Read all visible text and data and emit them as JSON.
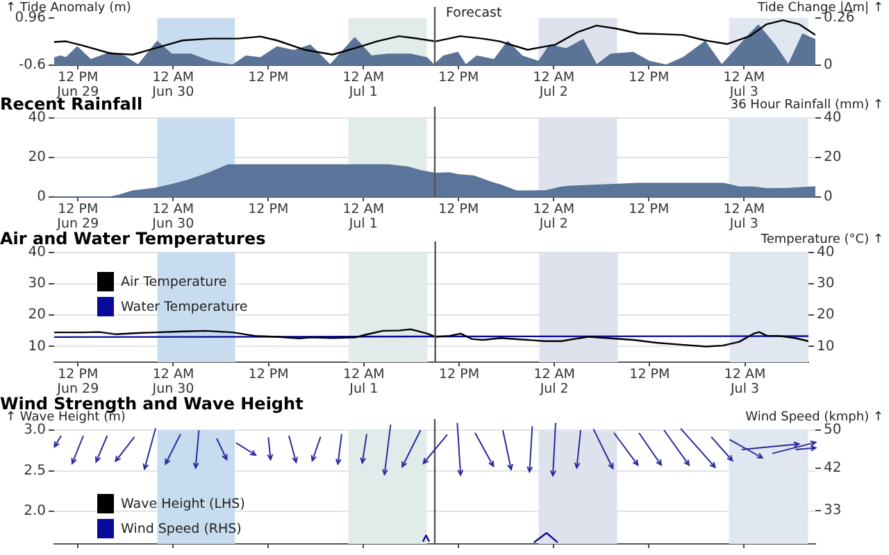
{
  "chart_data": [
    {
      "type": "line",
      "ylabel": "↑ Tide Anomaly (m)",
      "y2label": "Tide Change |Δm| ↑",
      "xlim": [
        "--06-29T09:00",
        "--07-03T09:00"
      ],
      "xticks": [
        {
          "value": "--06-29T12:00",
          "label": "12 PM\nJun 29"
        },
        {
          "value": "--06-30T00:00",
          "label": "12 AM\nJun 30"
        },
        {
          "value": "--06-30T12:00",
          "label": "12 PM"
        },
        {
          "value": "--07-01T00:00",
          "label": "12 AM\nJul 1"
        },
        {
          "value": "--07-01T12:00",
          "label": "12 PM"
        },
        {
          "value": "--07-02T00:00",
          "label": "12 AM\nJul 2"
        },
        {
          "value": "--07-02T12:00",
          "label": "12 PM"
        },
        {
          "value": "--07-03T00:00",
          "label": "12 AM\nJul 3"
        }
      ],
      "ylim": [
        -0.6,
        0.96
      ],
      "yticks": [
        -0.6,
        0.96
      ],
      "y2lim": [
        0,
        0.26
      ],
      "y2ticks": [
        0,
        0.26
      ],
      "grid": false,
      "bands": [
        {
          "axis": "x",
          "from": "--06-29T22:00",
          "to": "--06-30T07:48",
          "color": "#c8dcef"
        },
        {
          "axis": "x",
          "from": "--06-30T22:06",
          "to": "--07-01T08:00",
          "color": "#e0ebea"
        },
        {
          "axis": "x",
          "from": "--07-01T22:06",
          "to": "--07-02T08:00",
          "color": "#dde2ec"
        },
        {
          "axis": "x",
          "from": "--07-02T22:06",
          "to": "--07-03T08:06",
          "color": "#e0e7f0"
        }
      ],
      "ref_lines": [
        {
          "axis": "x",
          "value": "--07-01T09:00",
          "label": "Forecast",
          "color": "#555555"
        }
      ],
      "series": [
        {
          "type": "area",
          "axis": "y2",
          "color": "#5a7396",
          "x": [
            "--06-29T09:00",
            "--06-29T09:48",
            "--06-29T10:30",
            "--06-29T11:54",
            "--06-29T13:36",
            "--06-29T16:06",
            "--06-29T17:48",
            "--06-29T19:36",
            "--06-29T22:00",
            "--06-29T23:48",
            "--06-30T02:12",
            "--06-30T04:42",
            "--06-30T07:30",
            "--06-30T09:12",
            "--06-30T11:00",
            "--06-30T13:06",
            "--06-30T15:12",
            "--06-30T17:18",
            "--06-30T19:48",
            "--06-30T22:54",
            "--07-01T01:00",
            "--07-01T03:06",
            "--07-01T05:54",
            "--07-01T08:00",
            "--07-01T08:54",
            "--07-01T10:06",
            "--07-01T11:54",
            "--07-01T12:54",
            "--07-01T14:18",
            "--07-01T16:30",
            "--07-01T18:12",
            "--07-01T20:00",
            "--07-01T22:06",
            "--07-01T23:30",
            "--07-02T01:36",
            "--07-02T03:42",
            "--07-02T05:24",
            "--07-02T07:12",
            "--07-02T10:00",
            "--07-02T12:06",
            "--07-02T14:12",
            "--07-02T16:18",
            "--07-02T19:06",
            "--07-02T21:12",
            "--07-03T00:42",
            "--07-03T01:48",
            "--07-03T03:54",
            "--07-03T05:36",
            "--07-03T07:24",
            "--07-03T09:00"
          ],
          "values": [
            0.04,
            0.05,
            0.04,
            0.1,
            0.03,
            0.07,
            0.05,
            0,
            0.13,
            0.06,
            0.06,
            0.02,
            0,
            0.05,
            0.04,
            0.1,
            0.08,
            0.11,
            0,
            0.15,
            0.05,
            0.06,
            0.06,
            0.04,
            0,
            0.05,
            0.07,
            0,
            0.05,
            0.03,
            0.13,
            0.05,
            0.02,
            0.11,
            0.09,
            0.14,
            0,
            0.06,
            0.07,
            0.02,
            0,
            0.04,
            0.13,
            0,
            0.17,
            0.22,
            0.11,
            0,
            0.17,
            0.14
          ]
        },
        {
          "type": "line",
          "color": "#000000",
          "x": [
            "--06-29T09:00",
            "--06-29T10:30",
            "--06-29T12:36",
            "--06-29T16:06",
            "--06-29T18:54",
            "--06-29T21:42",
            "--06-30T01:12",
            "--06-30T04:42",
            "--06-30T08:12",
            "--06-30T11:00",
            "--06-30T13:06",
            "--06-30T16:36",
            "--06-30T20:06",
            "--06-30T22:54",
            "--07-01T01:42",
            "--07-01T04:30",
            "--07-01T06:36",
            "--07-01T09:06",
            "--07-01T12:12",
            "--07-01T15:00",
            "--07-01T17:12",
            "--07-01T20:42",
            "--07-02T00:12",
            "--07-02T03:00",
            "--07-02T05:24",
            "--07-02T07:54",
            "--07-02T10:42",
            "--07-02T13:30",
            "--07-02T16:18",
            "--07-02T19:06",
            "--07-02T21:54",
            "--07-03T00:42",
            "--07-03T02:48",
            "--07-03T04:54",
            "--07-03T07:00",
            "--07-03T09:00"
          ],
          "values": [
            0.17,
            0.19,
            0.05,
            -0.21,
            -0.25,
            -0.04,
            0.22,
            0.28,
            0.28,
            0.35,
            0.22,
            -0.09,
            -0.25,
            -0.04,
            0.19,
            0.36,
            0.29,
            0.19,
            0.36,
            0.28,
            0.19,
            -0.09,
            0.08,
            0.49,
            0.71,
            0.61,
            0.45,
            0.43,
            0.4,
            0.22,
            0.1,
            0.36,
            0.75,
            0.89,
            0.75,
            0.4
          ]
        }
      ]
    },
    {
      "type": "area",
      "title": "Recent Rainfall",
      "y2label": "36 Hour Rainfall (mm) ↑",
      "xlim": [
        "--06-29T09:00",
        "--07-03T09:00"
      ],
      "xticks": [
        {
          "value": "--06-29T12:00",
          "label": "12 PM\nJun 29"
        },
        {
          "value": "--06-30T00:00",
          "label": "12 AM\nJun 30"
        },
        {
          "value": "--06-30T12:00",
          "label": "12 PM"
        },
        {
          "value": "--07-01T00:00",
          "label": "12 AM\nJul 1"
        },
        {
          "value": "--07-01T12:00",
          "label": "12 PM"
        },
        {
          "value": "--07-02T00:00",
          "label": "12 AM\nJul 2"
        },
        {
          "value": "--07-02T12:00",
          "label": "12 PM"
        },
        {
          "value": "--07-03T00:00",
          "label": "12 AM\nJul 3"
        }
      ],
      "ylim": [
        0,
        40
      ],
      "yticks": [
        0,
        20,
        40
      ],
      "y2lim": [
        0,
        40
      ],
      "y2ticks": [
        0,
        20,
        40
      ],
      "grid": "y",
      "bands": [
        {
          "axis": "x",
          "from": "--06-29T22:00",
          "to": "--06-30T07:48",
          "color": "#c8dcef"
        },
        {
          "axis": "x",
          "from": "--06-30T22:06",
          "to": "--07-01T08:00",
          "color": "#e0ebea"
        },
        {
          "axis": "x",
          "from": "--07-01T22:06",
          "to": "--07-02T08:00",
          "color": "#dde2ec"
        },
        {
          "axis": "x",
          "from": "--07-02T22:06",
          "to": "--07-03T08:06",
          "color": "#e0e7f0"
        }
      ],
      "ref_lines": [
        {
          "axis": "x",
          "value": "--07-01T09:00",
          "color": "#555555"
        }
      ],
      "series": [
        {
          "axis": "y2",
          "color": "#5b7499",
          "x": [
            "--06-29T09:00",
            "--06-29T16:06",
            "--06-29T17:06",
            "--06-29T18:54",
            "--06-29T21:42",
            "--06-29T23:48",
            "--06-30T01:54",
            "--06-30T04:42",
            "--06-30T06:54",
            "--06-30T13:06",
            "--06-30T20:06",
            "--07-01T03:06",
            "--07-01T05:36",
            "--07-01T07:18",
            "--07-01T09:06",
            "--07-01T10:48",
            "--07-01T12:12",
            "--07-01T14:00",
            "--07-01T15:48",
            "--07-01T17:30",
            "--07-01T19:18",
            "--07-01T20:42",
            "--07-01T23:06",
            "--07-02T00:54",
            "--07-02T02:18",
            "--07-02T07:12",
            "--07-02T10:42",
            "--07-02T14:12",
            "--07-02T17:42",
            "--07-02T21:30",
            "--07-02T23:18",
            "--07-03T01:24",
            "--07-03T02:48",
            "--07-03T05:36",
            "--07-03T09:00"
          ],
          "values": [
            0,
            0,
            0.8,
            3,
            4.3,
            6.2,
            8.4,
            12.4,
            16.2,
            16.2,
            16.2,
            16.2,
            15.1,
            13.2,
            11.9,
            12.2,
            11.1,
            10.5,
            7.8,
            5.7,
            3,
            3,
            3.2,
            4.9,
            5.4,
            6.2,
            6.8,
            6.8,
            6.8,
            6.8,
            5.1,
            4.9,
            4.1,
            4.3,
            5.1
          ]
        }
      ]
    },
    {
      "type": "line",
      "title": "Air and Water Temperatures",
      "y2label": "Temperature (°C) ↑",
      "xlim": [
        "--06-29T09:00",
        "--07-03T08:00"
      ],
      "xticks": [
        {
          "value": "--06-29T12:00",
          "label": "12 PM\nJun 29"
        },
        {
          "value": "--06-30T00:00",
          "label": "12 AM\nJun 30"
        },
        {
          "value": "--06-30T12:00",
          "label": "12 PM"
        },
        {
          "value": "--07-01T00:00",
          "label": "12 AM\nJul 1"
        },
        {
          "value": "--07-01T12:00",
          "label": "12 PM"
        },
        {
          "value": "--07-02T00:00",
          "label": "12 AM\nJul 2"
        },
        {
          "value": "--07-02T12:00",
          "label": "12 PM"
        },
        {
          "value": "--07-03T00:00",
          "label": "12 AM\nJul 3"
        }
      ],
      "ylim": [
        5,
        40
      ],
      "yticks": [
        10,
        20,
        30,
        40
      ],
      "y2lim": [
        5,
        40
      ],
      "y2ticks": [
        10,
        20,
        30,
        40
      ],
      "grid": "y",
      "legend": "top left",
      "bands": [
        {
          "axis": "x",
          "from": "--06-29T22:00",
          "to": "--06-30T07:48",
          "color": "#c8dcef"
        },
        {
          "axis": "x",
          "from": "--06-30T22:06",
          "to": "--07-01T08:00",
          "color": "#e0ebea"
        },
        {
          "axis": "x",
          "from": "--07-01T22:06",
          "to": "--07-02T08:00",
          "color": "#dde2ec"
        },
        {
          "axis": "x",
          "from": "--07-02T22:06",
          "to": "--07-03T08:00",
          "color": "#e0e7f0"
        }
      ],
      "ref_lines": [
        {
          "axis": "x",
          "value": "--07-01T09:00",
          "color": "#555555"
        }
      ],
      "series": [
        {
          "name": "Air Temperature",
          "color": "#000000",
          "x": [
            "--06-29T09:00",
            "--06-29T12:36",
            "--06-29T14:42",
            "--06-29T16:48",
            "--06-29T19:36",
            "--06-29T21:42",
            "--06-30T01:12",
            "--06-30T04:00",
            "--06-30T07:30",
            "--06-30T10:18",
            "--06-30T13:06",
            "--06-30T15:54",
            "--06-30T17:18",
            "--06-30T20:06",
            "--06-30T22:54",
            "--07-01T00:18",
            "--07-01T02:24",
            "--07-01T04:30",
            "--07-01T05:54",
            "--07-01T08:00",
            "--07-01T09:00",
            "--07-01T10:48",
            "--07-01T12:12",
            "--07-01T13:36",
            "--07-01T15:00",
            "--07-01T17:12",
            "--07-01T20:00",
            "--07-01T22:48",
            "--07-02T00:54",
            "--07-02T03:00",
            "--07-02T04:24",
            "--07-02T07:12",
            "--07-02T10:00",
            "--07-02T12:48",
            "--07-02T16:18",
            "--07-02T19:06",
            "--07-02T21:12",
            "--07-02T23:18",
            "--07-03T01:06",
            "--07-03T01:48",
            "--07-03T02:48",
            "--07-03T04:12",
            "--07-03T06:18",
            "--07-03T08:00"
          ],
          "values": [
            14.5,
            14.5,
            14.6,
            13.9,
            14.3,
            14.5,
            14.8,
            15,
            14.5,
            13.4,
            13.1,
            12.6,
            12.9,
            12.7,
            12.9,
            13.8,
            15,
            15.1,
            15.5,
            14.1,
            13.1,
            13.4,
            14.1,
            12.4,
            12.1,
            12.7,
            12.2,
            11.7,
            11.7,
            12.6,
            13.1,
            12.6,
            12.1,
            11.2,
            10.5,
            10,
            10.3,
            11.5,
            14.1,
            14.6,
            13.4,
            13.4,
            12.7,
            11.7
          ]
        },
        {
          "name": "Water Temperature",
          "color": "#0a0a9a",
          "x": [
            "--06-29T09:00",
            "--07-01T09:00",
            "--07-03T08:00"
          ],
          "values": [
            13,
            13.2,
            13.3
          ]
        }
      ]
    },
    {
      "type": "line",
      "title": "Wind Strength and Wave Height",
      "ylabel": "↑ Wave Height (m)",
      "y2label": "Wind Speed (kmph) ↑",
      "xlim": [
        "--06-29T09:00",
        "--07-03T09:00"
      ],
      "xticks": [
        {
          "value": "--06-29T12:00",
          "label": null
        },
        {
          "value": "--06-30T00:00",
          "label": null
        },
        {
          "value": "--06-30T12:00",
          "label": null
        },
        {
          "value": "--07-01T00:00",
          "label": null
        },
        {
          "value": "--07-01T12:00",
          "label": null
        },
        {
          "value": "--07-02T00:00",
          "label": null
        },
        {
          "value": "--07-02T12:00",
          "label": null
        },
        {
          "value": "--07-03T00:00",
          "label": null
        }
      ],
      "ylim": [
        1.6,
        3
      ],
      "yticks": [
        {
          "value": 2,
          "label": "2.0"
        },
        2.5,
        {
          "value": 3,
          "label": "3.0"
        }
      ],
      "y2lim": [
        26,
        50
      ],
      "y2ticks": [
        33,
        42,
        50
      ],
      "grid": "y",
      "legend": "bottom left",
      "tick_labels": "y",
      "bands": [
        {
          "axis": "x",
          "from": "--06-29T22:00",
          "to": "--06-30T07:48",
          "color": "#c8dcef"
        },
        {
          "axis": "x",
          "from": "--06-30T22:06",
          "to": "--07-01T08:00",
          "color": "#e0ebea"
        },
        {
          "axis": "x",
          "from": "--07-01T22:06",
          "to": "--07-02T08:00",
          "color": "#dde2ec"
        },
        {
          "axis": "x",
          "from": "--07-02T22:06",
          "to": "--07-03T08:06",
          "color": "#e0e7f0"
        }
      ],
      "ref_lines": [
        {
          "axis": "x",
          "value": "--07-01T09:00",
          "color": "#555555"
        }
      ],
      "series": [
        {
          "name": "Wave Height (LHS)",
          "color": "#000000"
        },
        {
          "name": "Wind Speed (RHS)",
          "axis": "y2",
          "color": "#0a0a9a",
          "x": [
            "--07-01T07:30",
            "--07-01T07:54",
            "--07-01T08:18",
            "--07-01T17:00",
            "--07-01T21:30",
            "--07-01T23:06",
            "--07-02T00:30"
          ],
          "values": [
            26.5,
            27.8,
            26.5,
            null,
            26.3,
            28.3,
            26.3
          ]
        }
      ]
    }
  ]
}
